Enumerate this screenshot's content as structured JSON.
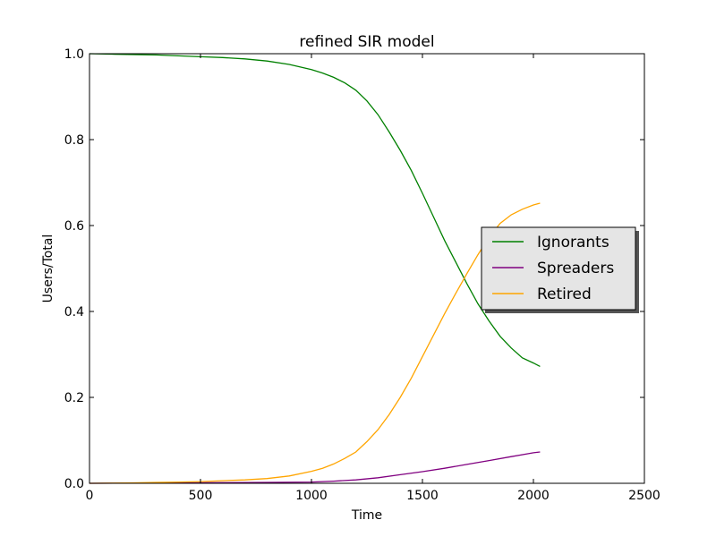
{
  "chart_data": {
    "type": "line",
    "title": "refined SIR model",
    "xlabel": "Time",
    "ylabel": "Users/Total",
    "xlim": [
      0,
      2500
    ],
    "ylim": [
      0.0,
      1.0
    ],
    "xticks": [
      "0",
      "500",
      "1000",
      "1500",
      "2000",
      "2500"
    ],
    "yticks": [
      "0.0",
      "0.2",
      "0.4",
      "0.6",
      "0.8",
      "1.0"
    ],
    "grid": false,
    "legend_position": "center-right",
    "series": [
      {
        "name": "Ignorants",
        "color": "#008000",
        "x": [
          0,
          100,
          200,
          300,
          400,
          500,
          600,
          700,
          800,
          900,
          1000,
          1050,
          1100,
          1150,
          1200,
          1250,
          1300,
          1350,
          1400,
          1450,
          1500,
          1550,
          1600,
          1650,
          1700,
          1750,
          1800,
          1850,
          1900,
          1950,
          2000,
          2030
        ],
        "y": [
          1.0,
          0.999,
          0.998,
          0.997,
          0.995,
          0.993,
          0.991,
          0.988,
          0.983,
          0.975,
          0.963,
          0.955,
          0.945,
          0.932,
          0.915,
          0.89,
          0.858,
          0.818,
          0.775,
          0.728,
          0.675,
          0.62,
          0.565,
          0.515,
          0.465,
          0.418,
          0.378,
          0.342,
          0.315,
          0.292,
          0.28,
          0.272
        ]
      },
      {
        "name": "Spreaders",
        "color": "#800080",
        "x": [
          0,
          200,
          400,
          600,
          800,
          1000,
          1100,
          1200,
          1300,
          1400,
          1500,
          1600,
          1700,
          1800,
          1900,
          2000,
          2030
        ],
        "y": [
          0.0,
          0.0005,
          0.001,
          0.0015,
          0.002,
          0.003,
          0.005,
          0.008,
          0.013,
          0.02,
          0.027,
          0.035,
          0.044,
          0.053,
          0.062,
          0.071,
          0.073
        ]
      },
      {
        "name": "Retired",
        "color": "#FFA500",
        "x": [
          0,
          100,
          200,
          300,
          400,
          500,
          600,
          700,
          800,
          900,
          1000,
          1050,
          1100,
          1150,
          1200,
          1250,
          1300,
          1350,
          1400,
          1450,
          1500,
          1550,
          1600,
          1650,
          1700,
          1750,
          1800,
          1850,
          1900,
          1950,
          2000,
          2030
        ],
        "y": [
          0.0,
          0.0005,
          0.001,
          0.002,
          0.003,
          0.004,
          0.006,
          0.008,
          0.011,
          0.017,
          0.028,
          0.035,
          0.045,
          0.058,
          0.073,
          0.097,
          0.125,
          0.16,
          0.2,
          0.245,
          0.295,
          0.345,
          0.395,
          0.442,
          0.488,
          0.532,
          0.573,
          0.605,
          0.625,
          0.638,
          0.648,
          0.652
        ]
      }
    ]
  }
}
